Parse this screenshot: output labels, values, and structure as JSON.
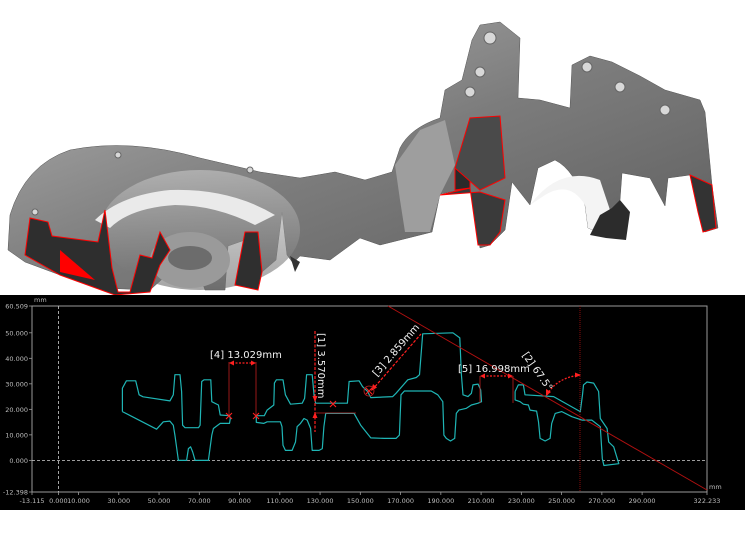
{
  "render": {
    "subject": "3D scan of aluminium casting with section cut",
    "colors": {
      "metal": "#8d8d8d",
      "section_edge": "#ff0000",
      "cut_face": "#2b2b2b"
    }
  },
  "chart_data": {
    "type": "line",
    "title": "",
    "xlabel": "mm",
    "ylabel": "mm",
    "xlim": [
      -13.115,
      322.233
    ],
    "ylim": [
      -12.398,
      60.509
    ],
    "x_tick_labels": [
      "-13.115",
      "0.000",
      "10.000",
      "30.000",
      "50.000",
      "70.000",
      "90.000",
      "110.000",
      "130.000",
      "150.000",
      "170.000",
      "190.000",
      "210.000",
      "230.000",
      "250.000",
      "270.000",
      "290.000",
      "322.233"
    ],
    "x_tick_values": [
      -13.115,
      0,
      10,
      30,
      50,
      70,
      90,
      110,
      130,
      150,
      170,
      190,
      210,
      230,
      250,
      270,
      290,
      322.233
    ],
    "y_tick_labels": [
      "60.509",
      "50.000",
      "40.000",
      "30.000",
      "20.000",
      "10.000",
      "0.000",
      "-12.398"
    ],
    "y_tick_values": [
      60.509,
      50,
      40,
      30,
      20,
      10,
      0,
      -12.398
    ],
    "grid": false,
    "background": "#000000",
    "profile_color": "#1fb5b5",
    "measure_color": "#ff2020",
    "series": [
      {
        "points": [
          [
            31.8,
            19.1
          ],
          [
            31.8,
            28.3
          ],
          [
            33.8,
            31.2
          ],
          [
            38.4,
            31.2
          ],
          [
            40.1,
            25.7
          ],
          [
            42.1,
            24.9
          ],
          [
            55.4,
            23.3
          ],
          [
            57.1,
            25.7
          ],
          [
            57.9,
            33.6
          ],
          [
            60.4,
            33.6
          ],
          [
            61.2,
            27.0
          ],
          [
            61.7,
            13.8
          ],
          [
            62.9,
            12.8
          ],
          [
            69.6,
            12.8
          ],
          [
            70.4,
            13.8
          ],
          [
            71.2,
            30.9
          ],
          [
            72.4,
            31.6
          ],
          [
            75.7,
            31.6
          ],
          [
            76.2,
            23.0
          ],
          [
            79.5,
            21.7
          ],
          [
            80.4,
            17.8
          ],
          [
            85.0,
            17.5
          ],
          [
            85.4,
            16.4
          ],
          [
            85.0,
            14.5
          ],
          [
            80.4,
            14.5
          ],
          [
            77.0,
            12.5
          ],
          [
            76.2,
            9.9
          ],
          [
            74.5,
            0
          ],
          [
            67.9,
            0
          ],
          [
            66.7,
            3.3
          ],
          [
            65.7,
            5.3
          ],
          [
            64.6,
            4.6
          ],
          [
            63.7,
            0
          ],
          [
            59.6,
            0
          ],
          [
            57.9,
            9.9
          ],
          [
            57.1,
            13.8
          ],
          [
            55.4,
            15.4
          ],
          [
            52.1,
            15.1
          ],
          [
            48.8,
            12.2
          ],
          [
            31.8,
            19.1
          ]
        ]
      },
      {
        "points": [
          [
            98.3,
            17.5
          ],
          [
            102.3,
            17.5
          ],
          [
            103.7,
            19.7
          ],
          [
            107.0,
            21.7
          ],
          [
            107.3,
            30.3
          ],
          [
            108.3,
            31.6
          ],
          [
            111.6,
            31.6
          ],
          [
            112.8,
            25.7
          ],
          [
            115.3,
            22.0
          ],
          [
            121.1,
            22.4
          ],
          [
            122.3,
            24.3
          ],
          [
            123.3,
            33.6
          ],
          [
            126.1,
            33.6
          ],
          [
            127.0,
            25.7
          ],
          [
            127.8,
            22.4
          ],
          [
            143.6,
            22.4
          ],
          [
            144.4,
            30.9
          ],
          [
            149.4,
            31.2
          ],
          [
            151.1,
            28.9
          ],
          [
            153.6,
            27.0
          ],
          [
            155.2,
            24.6
          ],
          [
            166.1,
            25.0
          ],
          [
            167.7,
            26.3
          ],
          [
            173.6,
            31.6
          ],
          [
            177.8,
            32.5
          ],
          [
            179.4,
            33.6
          ],
          [
            181.0,
            49.6
          ],
          [
            196.0,
            50.0
          ],
          [
            199.4,
            48.0
          ],
          [
            200.2,
            33.6
          ],
          [
            201.0,
            25.7
          ],
          [
            203.5,
            25.0
          ],
          [
            205.2,
            26.3
          ],
          [
            206.0,
            29.6
          ],
          [
            208.5,
            29.9
          ],
          [
            209.8,
            27.6
          ],
          [
            210.2,
            23.0
          ],
          [
            208.5,
            22.4
          ],
          [
            205.2,
            21.7
          ],
          [
            202.7,
            20.4
          ],
          [
            198.9,
            19.7
          ],
          [
            197.7,
            18.4
          ],
          [
            196.9,
            8.6
          ],
          [
            194.8,
            7.6
          ],
          [
            192.7,
            8.6
          ],
          [
            191.5,
            9.9
          ],
          [
            191.0,
            23.0
          ],
          [
            188.5,
            25.7
          ],
          [
            185.2,
            27.2
          ],
          [
            171.9,
            27.2
          ],
          [
            170.2,
            25.7
          ],
          [
            169.4,
            9.9
          ],
          [
            167.7,
            8.6
          ],
          [
            161.9,
            8.6
          ],
          [
            155.2,
            8.8
          ],
          [
            150.2,
            13.8
          ],
          [
            146.9,
            18.4
          ],
          [
            132.8,
            18.4
          ],
          [
            131.9,
            13.2
          ],
          [
            131.1,
            4.6
          ],
          [
            129.5,
            3.9
          ],
          [
            126.1,
            3.9
          ],
          [
            125.3,
            12.5
          ],
          [
            123.6,
            15.8
          ],
          [
            122.0,
            16.4
          ],
          [
            120.3,
            14.5
          ],
          [
            118.6,
            13.2
          ],
          [
            117.8,
            7.2
          ],
          [
            116.1,
            3.9
          ],
          [
            112.8,
            3.9
          ],
          [
            111.6,
            5.9
          ],
          [
            111.1,
            13.2
          ],
          [
            110.3,
            15.1
          ],
          [
            103.7,
            15.1
          ],
          [
            102.0,
            14.5
          ],
          [
            98.3,
            14.9
          ],
          [
            98.3,
            17.5
          ]
        ]
      },
      {
        "points": [
          [
            226.9,
            27.0
          ],
          [
            228.5,
            29.6
          ],
          [
            231.0,
            29.6
          ],
          [
            231.8,
            25.7
          ],
          [
            246.0,
            25.0
          ],
          [
            259.3,
            19.1
          ],
          [
            260.4,
            25.7
          ],
          [
            260.9,
            29.6
          ],
          [
            262.6,
            30.7
          ],
          [
            265.9,
            30.3
          ],
          [
            268.4,
            27.0
          ],
          [
            269.2,
            16.4
          ],
          [
            272.6,
            12.5
          ],
          [
            273.4,
            7.2
          ],
          [
            275.9,
            5.3
          ],
          [
            278.4,
            -1.3
          ],
          [
            271.0,
            -2.0
          ],
          [
            270.2,
            0.7
          ],
          [
            269.2,
            13.2
          ],
          [
            265.0,
            15.8
          ],
          [
            260.1,
            15.8
          ],
          [
            255.1,
            17.1
          ],
          [
            250.1,
            19.1
          ],
          [
            246.8,
            18.4
          ],
          [
            245.1,
            14.5
          ],
          [
            244.3,
            8.6
          ],
          [
            241.8,
            7.6
          ],
          [
            239.3,
            8.6
          ],
          [
            238.5,
            15.1
          ],
          [
            237.6,
            19.3
          ],
          [
            234.3,
            19.7
          ],
          [
            233.5,
            21.7
          ],
          [
            231.0,
            22.0
          ],
          [
            229.4,
            23.0
          ],
          [
            226.9,
            23.7
          ],
          [
            226.9,
            27.0
          ]
        ]
      }
    ],
    "annotations": [
      {
        "id": "[4]",
        "label": "[4] 13.029mm",
        "type": "distance"
      },
      {
        "id": "[1]",
        "label": "[1] 3.570mm",
        "type": "distance"
      },
      {
        "id": "[3]",
        "label": "[3] 2.859mm",
        "type": "distance"
      },
      {
        "id": "[5]",
        "label": "[5] 16.998mm",
        "type": "distance"
      },
      {
        "id": "[2]",
        "label": "[2] 67.5°",
        "type": "angle"
      }
    ]
  }
}
